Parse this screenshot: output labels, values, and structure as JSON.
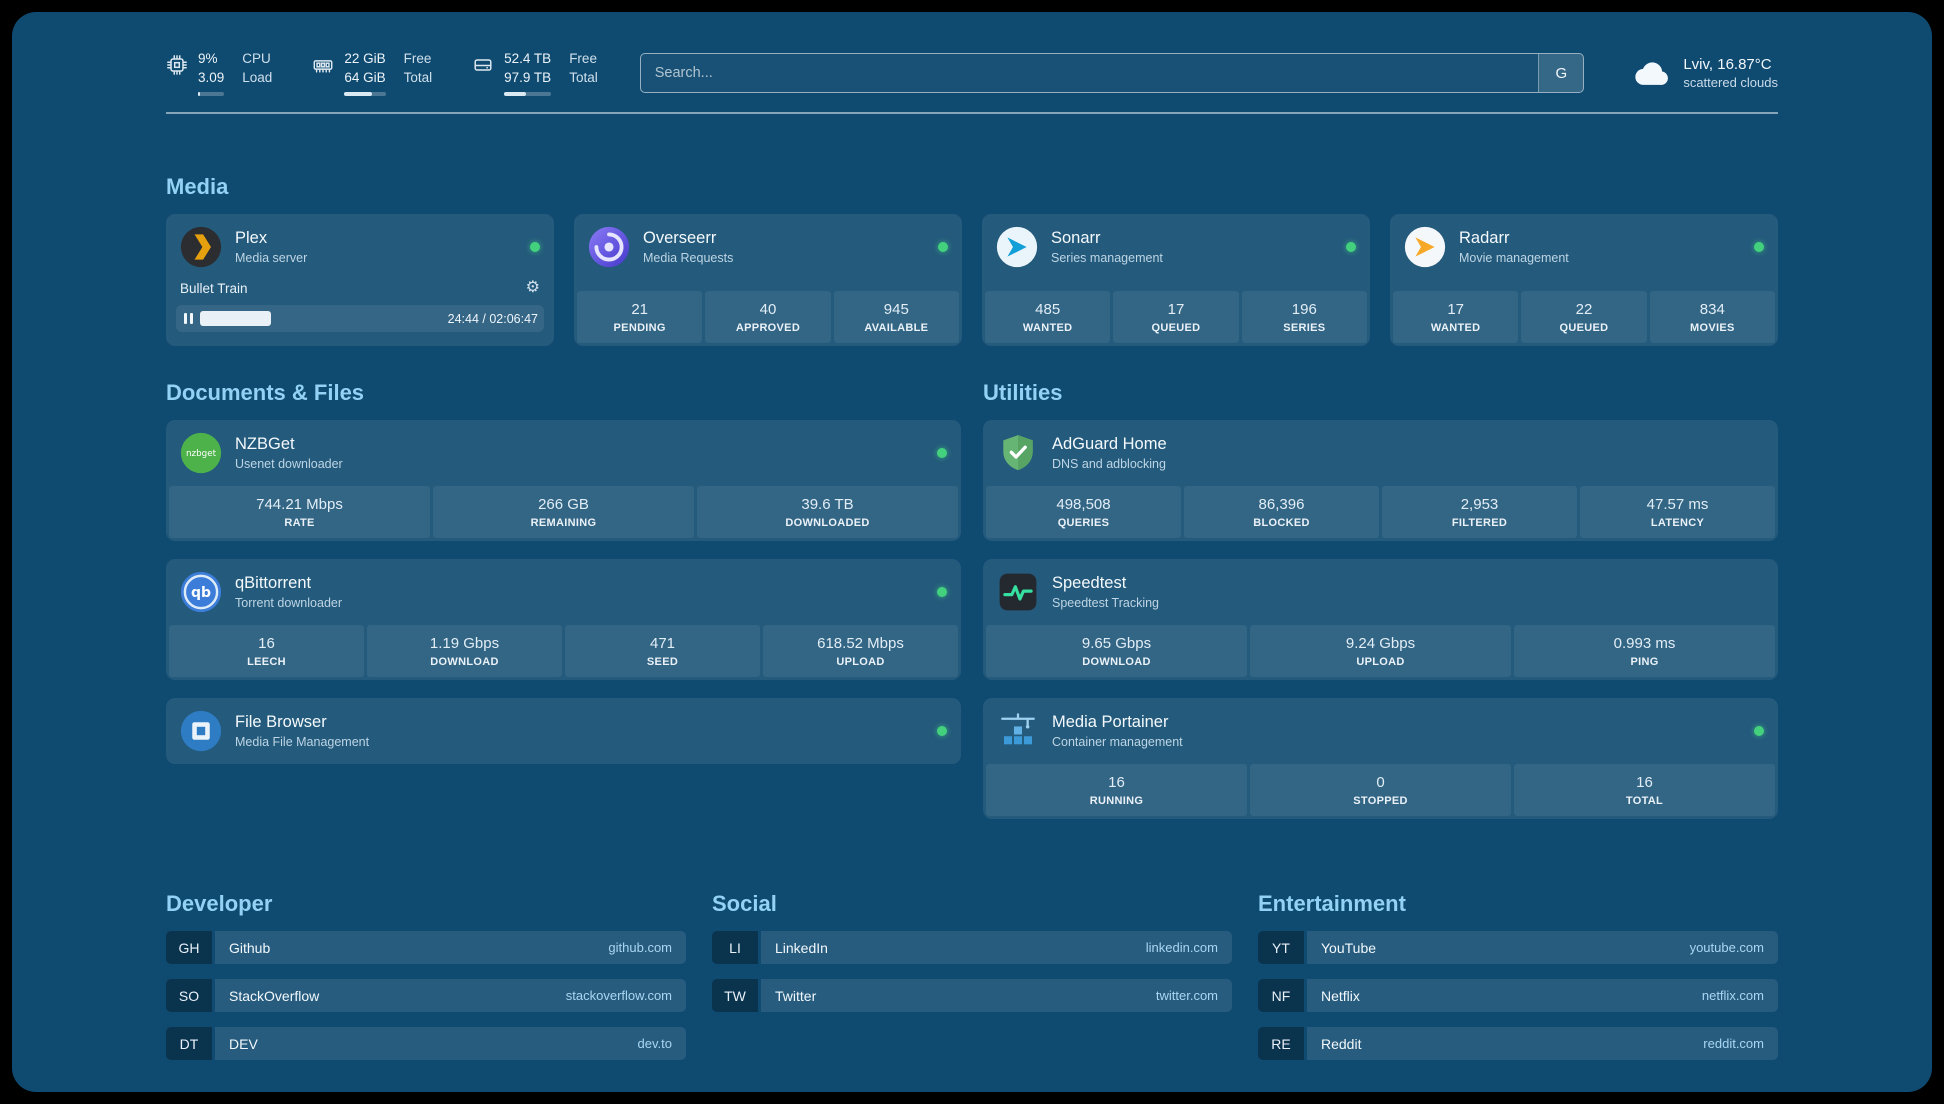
{
  "theme": {
    "background": "#0f4a70",
    "heading": "#93d2f4",
    "status_online": "#43d17e",
    "link": "#a9d6f2"
  },
  "header": {
    "resources": [
      {
        "icon": "cpu-icon",
        "value_top": "9%",
        "value_bottom": "3.09",
        "label_top": "CPU",
        "label_bottom": "Load",
        "progress": 9
      },
      {
        "icon": "memory-icon",
        "value_top": "22 GiB",
        "value_bottom": "64 GiB",
        "label_top": "Free",
        "label_bottom": "Total",
        "progress": 66
      },
      {
        "icon": "disk-icon",
        "value_top": "52.4 TB",
        "value_bottom": "97.9 TB",
        "label_top": "Free",
        "label_bottom": "Total",
        "progress": 46
      }
    ],
    "search": {
      "placeholder": "Search...",
      "provider_button": "G"
    },
    "weather": {
      "icon": "cloud-icon",
      "location": "Lviv, 16.87°C",
      "condition": "scattered clouds"
    }
  },
  "sections": {
    "media": {
      "title": "Media",
      "plex": {
        "title": "Plex",
        "subtitle": "Media server",
        "status": "online",
        "now_playing": "Bullet Train",
        "time_display": "24:44 / 02:06:47",
        "progress": 20
      },
      "overseerr": {
        "title": "Overseerr",
        "subtitle": "Media Requests",
        "status": "online",
        "stats": [
          {
            "value": "21",
            "label": "PENDING"
          },
          {
            "value": "40",
            "label": "APPROVED"
          },
          {
            "value": "945",
            "label": "AVAILABLE"
          }
        ]
      },
      "sonarr": {
        "title": "Sonarr",
        "subtitle": "Series management",
        "status": "online",
        "stats": [
          {
            "value": "485",
            "label": "WANTED"
          },
          {
            "value": "17",
            "label": "QUEUED"
          },
          {
            "value": "196",
            "label": "SERIES"
          }
        ]
      },
      "radarr": {
        "title": "Radarr",
        "subtitle": "Movie management",
        "status": "online",
        "stats": [
          {
            "value": "17",
            "label": "WANTED"
          },
          {
            "value": "22",
            "label": "QUEUED"
          },
          {
            "value": "834",
            "label": "MOVIES"
          }
        ]
      }
    },
    "documents": {
      "title": "Documents & Files",
      "nzbget": {
        "title": "NZBGet",
        "subtitle": "Usenet downloader",
        "status": "online",
        "stats": [
          {
            "value": "744.21 Mbps",
            "label": "RATE"
          },
          {
            "value": "266 GB",
            "label": "REMAINING"
          },
          {
            "value": "39.6 TB",
            "label": "DOWNLOADED"
          }
        ]
      },
      "qbittorrent": {
        "title": "qBittorrent",
        "subtitle": "Torrent downloader",
        "status": "online",
        "stats": [
          {
            "value": "16",
            "label": "LEECH"
          },
          {
            "value": "1.19 Gbps",
            "label": "DOWNLOAD"
          },
          {
            "value": "471",
            "label": "SEED"
          },
          {
            "value": "618.52 Mbps",
            "label": "UPLOAD"
          }
        ]
      },
      "filebrowser": {
        "title": "File Browser",
        "subtitle": "Media File Management",
        "status": "online"
      }
    },
    "utilities": {
      "title": "Utilities",
      "adguard": {
        "title": "AdGuard Home",
        "subtitle": "DNS and adblocking",
        "stats": [
          {
            "value": "498,508",
            "label": "QUERIES"
          },
          {
            "value": "86,396",
            "label": "BLOCKED"
          },
          {
            "value": "2,953",
            "label": "FILTERED"
          },
          {
            "value": "47.57 ms",
            "label": "LATENCY"
          }
        ]
      },
      "speedtest": {
        "title": "Speedtest",
        "subtitle": "Speedtest Tracking",
        "stats": [
          {
            "value": "9.65 Gbps",
            "label": "DOWNLOAD"
          },
          {
            "value": "9.24 Gbps",
            "label": "UPLOAD"
          },
          {
            "value": "0.993 ms",
            "label": "PING"
          }
        ]
      },
      "portainer": {
        "title": "Media Portainer",
        "subtitle": "Container management",
        "status": "online",
        "stats": [
          {
            "value": "16",
            "label": "RUNNING"
          },
          {
            "value": "0",
            "label": "STOPPED"
          },
          {
            "value": "16",
            "label": "TOTAL"
          }
        ]
      }
    }
  },
  "bookmarks": {
    "developer": {
      "title": "Developer",
      "items": [
        {
          "abbr": "GH",
          "name": "Github",
          "domain": "github.com"
        },
        {
          "abbr": "SO",
          "name": "StackOverflow",
          "domain": "stackoverflow.com"
        },
        {
          "abbr": "DT",
          "name": "DEV",
          "domain": "dev.to"
        }
      ]
    },
    "social": {
      "title": "Social",
      "items": [
        {
          "abbr": "LI",
          "name": "LinkedIn",
          "domain": "linkedin.com"
        },
        {
          "abbr": "TW",
          "name": "Twitter",
          "domain": "twitter.com"
        }
      ]
    },
    "entertainment": {
      "title": "Entertainment",
      "items": [
        {
          "abbr": "YT",
          "name": "YouTube",
          "domain": "youtube.com"
        },
        {
          "abbr": "NF",
          "name": "Netflix",
          "domain": "netflix.com"
        },
        {
          "abbr": "RE",
          "name": "Reddit",
          "domain": "reddit.com"
        }
      ]
    }
  }
}
